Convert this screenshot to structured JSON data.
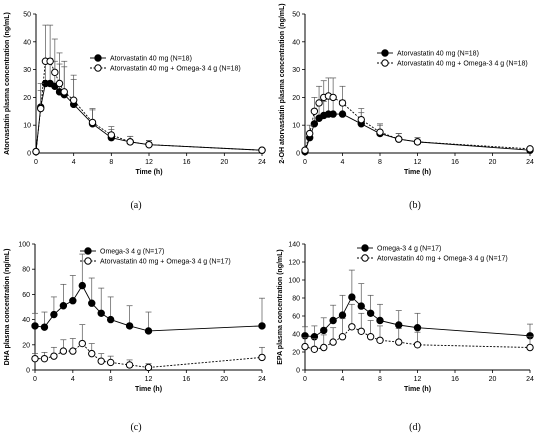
{
  "chart_data": [
    {
      "type": "line",
      "caption": "(a)",
      "xlabel": "Time (h)",
      "ylabel": "Atorvastatin plasma concentration (ng/mL)",
      "xlim": [
        0,
        24
      ],
      "ylim": [
        0,
        50
      ],
      "xticks": [
        0,
        4,
        8,
        12,
        16,
        20,
        24
      ],
      "yticks": [
        0,
        10,
        20,
        30,
        40,
        50
      ],
      "legend_position": "top-right",
      "series": [
        {
          "name": "Atorvastatin 40 mg (N=18)",
          "marker": "filled",
          "x": [
            0,
            0.5,
            1,
            1.5,
            2,
            2.5,
            3,
            4,
            6,
            8,
            10,
            12,
            24
          ],
          "y": [
            0.5,
            16.5,
            25,
            25,
            24,
            22,
            21,
            17.5,
            10.5,
            5.5,
            4,
            3,
            1
          ],
          "err": [
            0,
            6,
            8,
            9,
            9,
            10,
            10,
            9,
            5,
            3,
            2,
            1.5,
            0.5
          ]
        },
        {
          "name": "Atorvastatin 40 mg + Omega-3 4 g (N=18)",
          "marker": "open",
          "x": [
            0,
            0.5,
            1,
            1.5,
            2,
            2.5,
            3,
            4,
            6,
            8,
            10,
            12,
            24
          ],
          "y": [
            0.5,
            16,
            33,
            33,
            29,
            25,
            22,
            19,
            11,
            6.5,
            4,
            3,
            1
          ],
          "err": [
            0,
            9,
            13,
            13,
            12,
            11,
            11,
            9,
            5,
            3,
            2,
            1.5,
            0.5
          ]
        }
      ]
    },
    {
      "type": "line",
      "caption": "(b)",
      "xlabel": "Time (h)",
      "ylabel": "2-OH atorvastatin plasma concentration (ng/mL)",
      "xlim": [
        0,
        24
      ],
      "ylim": [
        0,
        50
      ],
      "xticks": [
        0,
        4,
        8,
        12,
        16,
        20,
        24
      ],
      "yticks": [
        0,
        10,
        20,
        30,
        40,
        50
      ],
      "legend_position": "top-right",
      "series": [
        {
          "name": "Atorvastatin 40 mg (N=18)",
          "marker": "filled",
          "x": [
            0,
            0.5,
            1,
            1.5,
            2,
            2.5,
            3,
            4,
            6,
            8,
            10,
            12,
            24
          ],
          "y": [
            0.5,
            5.5,
            10.5,
            12.5,
            13.5,
            14,
            14,
            14,
            10.5,
            7,
            5,
            4,
            1
          ],
          "err": [
            0,
            2,
            4,
            5,
            5,
            6,
            6,
            5,
            4,
            3,
            2,
            1.5,
            0.5
          ]
        },
        {
          "name": "Atorvastatin 40 mg + Omega-3 4 g (N=18)",
          "marker": "open",
          "x": [
            0,
            0.5,
            1,
            1.5,
            2,
            2.5,
            3,
            4,
            6,
            8,
            10,
            12,
            24
          ],
          "y": [
            1,
            7,
            15,
            18,
            20,
            20.5,
            20,
            18,
            12,
            7.5,
            5,
            4,
            1.5
          ],
          "err": [
            0,
            3,
            5,
            6,
            6,
            6.5,
            7,
            6,
            4,
            3,
            2,
            1.5,
            0.5
          ]
        }
      ]
    },
    {
      "type": "line",
      "caption": "(c)",
      "xlabel": "Time (h)",
      "ylabel": "DHA plasma concentration (ng/mL)",
      "xlim": [
        0,
        24
      ],
      "ylim": [
        0,
        100
      ],
      "xticks": [
        0,
        4,
        8,
        12,
        16,
        20,
        24
      ],
      "yticks": [
        0,
        20,
        40,
        60,
        80,
        100
      ],
      "legend_position": "top-right",
      "series": [
        {
          "name": "Omega-3 4 g (N=17)",
          "marker": "filled",
          "x": [
            0,
            1,
            2,
            3,
            4,
            5,
            6,
            7,
            8,
            10,
            12,
            24
          ],
          "y": [
            35,
            34,
            44,
            51,
            55,
            67,
            53,
            45,
            40,
            35,
            31,
            35
          ],
          "err": [
            10,
            12,
            14,
            17,
            20,
            25,
            20,
            20,
            18,
            16,
            15,
            22
          ]
        },
        {
          "name": "Atorvastatin 40 mg + Omega-3 4 g (N=17)",
          "marker": "open",
          "x": [
            0,
            1,
            2,
            3,
            4,
            5,
            6,
            7,
            8,
            10,
            12,
            24
          ],
          "y": [
            9,
            9,
            11,
            15,
            15,
            21,
            13,
            7,
            6,
            4,
            2,
            10
          ],
          "err": [
            4,
            5,
            7,
            9,
            10,
            15,
            8,
            6,
            5,
            4,
            3,
            8
          ]
        }
      ]
    },
    {
      "type": "line",
      "caption": "(d)",
      "xlabel": "Time (h)",
      "ylabel": "EPA plasma concentration (ng/mL)",
      "xlim": [
        0,
        24
      ],
      "ylim": [
        0,
        140
      ],
      "xticks": [
        0,
        4,
        8,
        12,
        16,
        20,
        24
      ],
      "yticks": [
        0,
        20,
        40,
        60,
        80,
        100,
        120,
        140
      ],
      "legend_position": "top-right",
      "series": [
        {
          "name": "Omega-3 4 g (N=17)",
          "marker": "filled",
          "x": [
            0,
            1,
            2,
            3,
            4,
            5,
            6,
            7,
            8,
            10,
            12,
            24
          ],
          "y": [
            38,
            37,
            44,
            55,
            61,
            81,
            71,
            63,
            55,
            50,
            47,
            38
          ],
          "err": [
            10,
            12,
            14,
            17,
            22,
            30,
            25,
            20,
            18,
            16,
            16,
            13
          ]
        },
        {
          "name": "Atorvastatin 40 mg + Omega-3 4 g (N=17)",
          "marker": "open",
          "x": [
            0,
            1,
            2,
            3,
            4,
            5,
            6,
            7,
            8,
            10,
            12,
            24
          ],
          "y": [
            26,
            23,
            25,
            31,
            37,
            48,
            43,
            37,
            33,
            31,
            28,
            25
          ],
          "err": [
            10,
            12,
            14,
            16,
            20,
            25,
            20,
            18,
            16,
            15,
            14,
            12
          ]
        }
      ]
    }
  ]
}
